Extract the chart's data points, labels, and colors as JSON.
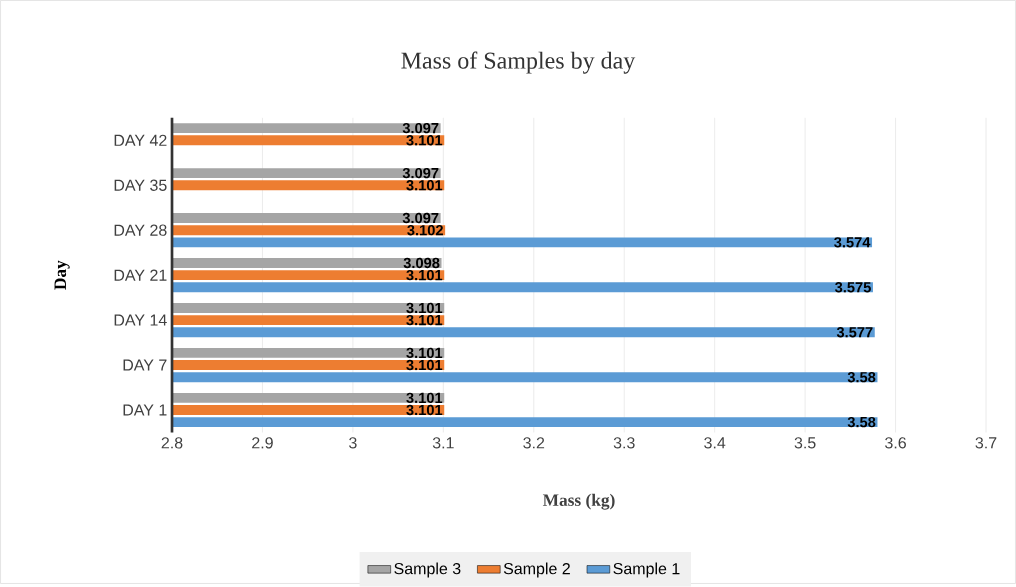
{
  "chart_data": {
    "type": "bar",
    "orientation": "horizontal",
    "title": "Mass of Samples by day",
    "xlabel": "Mass (kg)",
    "ylabel": "Day",
    "categories": [
      "DAY 42",
      "DAY 35",
      "DAY 28",
      "DAY 21",
      "DAY 14",
      "DAY 7",
      "DAY 1"
    ],
    "series": [
      {
        "name": "Sample 1",
        "color": "#5b9bd5",
        "values": [
          null,
          null,
          3.574,
          3.575,
          3.577,
          3.58,
          3.58
        ]
      },
      {
        "name": "Sample 2",
        "color": "#ed7d31",
        "values": [
          3.101,
          3.101,
          3.102,
          3.101,
          3.101,
          3.101,
          3.101
        ]
      },
      {
        "name": "Sample 3",
        "color": "#a5a5a5",
        "values": [
          3.097,
          3.097,
          3.097,
          3.098,
          3.101,
          3.101,
          3.101
        ]
      }
    ],
    "xlim": [
      2.8,
      3.7
    ],
    "xticks": [
      2.8,
      2.9,
      3,
      3.1,
      3.2,
      3.3,
      3.4,
      3.5,
      3.6,
      3.7
    ],
    "grid": "x",
    "legend": "bottom",
    "data_labels": true
  }
}
